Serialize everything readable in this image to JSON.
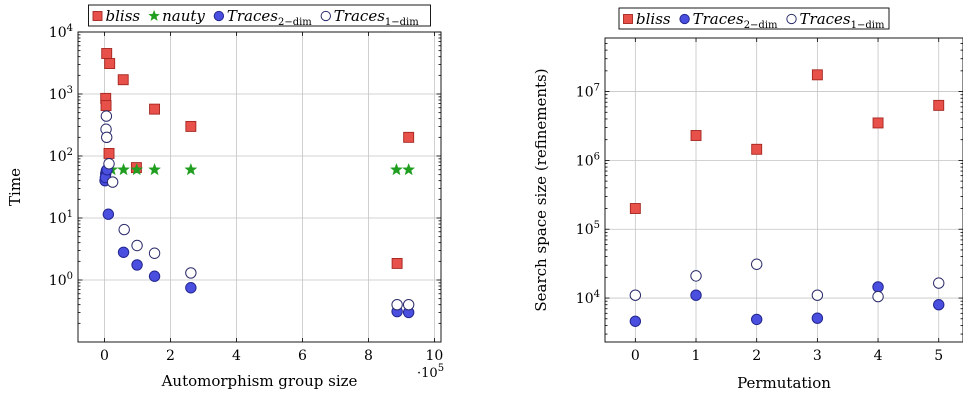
{
  "styles": {
    "bliss": {
      "marker": "square",
      "fill": "#e8504a",
      "stroke": "#a52620"
    },
    "nauty": {
      "marker": "star",
      "fill": "#1f9e1f",
      "stroke": "#1f9e1f"
    },
    "traces2": {
      "marker": "circle-filled",
      "fill": "#4a4fe0",
      "stroke": "#23268f"
    },
    "traces1": {
      "marker": "circle-open",
      "fill": "#ffffff",
      "stroke": "#2b2b6b"
    }
  },
  "chart_data": [
    {
      "type": "scatter",
      "ylabel": "Time",
      "xlabel": "Automorphism group size",
      "x_multiplier": "·10^5",
      "x_multiplier_base": "·10",
      "x_multiplier_exp": "5",
      "xlim": [
        -0.8,
        10.2
      ],
      "xticks": [
        0,
        2,
        4,
        6,
        8,
        10
      ],
      "xtick_labels": [
        "0",
        "2",
        "4",
        "6",
        "8",
        "10"
      ],
      "yscale": "log",
      "ylim": [
        0.1,
        10000
      ],
      "yticks": [
        1,
        10,
        100,
        1000,
        10000
      ],
      "ytick_base": "10",
      "ytick_exps": [
        "0",
        "1",
        "2",
        "3",
        "4"
      ],
      "grid": true,
      "legend_position": "top",
      "series": [
        {
          "name": "bliss",
          "style": "bliss",
          "x": [
            0.07,
            0.16,
            0.04,
            0.05,
            0.57,
            0.14,
            0.97,
            1.52,
            2.62,
            8.87,
            9.22
          ],
          "y": [
            4500,
            3100,
            850,
            650,
            1700,
            110,
            65,
            570,
            300,
            1.85,
            200
          ]
        },
        {
          "name": "nauty",
          "style": "nauty",
          "x": [
            0.22,
            0.58,
            0.98,
            1.52,
            2.62,
            8.85,
            9.22
          ],
          "y": [
            60,
            60,
            60,
            60,
            60,
            60,
            60
          ]
        },
        {
          "name": "Traces",
          "sub": "2−dim",
          "style": "traces2",
          "x": [
            0.02,
            0.04,
            0.06,
            0.03,
            0.08,
            0.12,
            0.58,
            0.99,
            1.52,
            2.62,
            8.87,
            9.22
          ],
          "y": [
            40,
            52,
            58,
            45,
            60,
            11.5,
            2.8,
            1.75,
            1.15,
            0.75,
            0.31,
            0.3
          ]
        },
        {
          "name": "Traces",
          "sub": "1−dim",
          "style": "traces1",
          "x": [
            0.06,
            0.05,
            0.07,
            0.14,
            0.25,
            0.6,
            0.99,
            1.52,
            2.62,
            8.87,
            9.22
          ],
          "y": [
            440,
            270,
            200,
            75,
            38,
            6.5,
            3.6,
            2.7,
            1.3,
            0.4,
            0.4
          ]
        }
      ]
    },
    {
      "type": "scatter",
      "ylabel": "Search space size (refinements)",
      "xlabel": "Permutation",
      "xlim": [
        -0.5,
        5.4
      ],
      "xticks": [
        0,
        1,
        2,
        3,
        4,
        5
      ],
      "xtick_labels": [
        "0",
        "1",
        "2",
        "3",
        "4",
        "5"
      ],
      "yscale": "log",
      "ylim": [
        2300,
        60000000
      ],
      "yticks": [
        10000,
        100000,
        1000000,
        10000000
      ],
      "ytick_base": "10",
      "ytick_exps": [
        "4",
        "5",
        "6",
        "7"
      ],
      "grid": true,
      "legend_position": "top",
      "series": [
        {
          "name": "bliss",
          "style": "bliss",
          "x": [
            0,
            1,
            2,
            3,
            4,
            5
          ],
          "y": [
            200000,
            2300000,
            1450000,
            17500000,
            3500000,
            6300000
          ]
        },
        {
          "name": "Traces",
          "sub": "2−dim",
          "style": "traces2",
          "x": [
            0,
            1,
            2,
            3,
            4,
            5
          ],
          "y": [
            4600,
            11000,
            4900,
            5100,
            14500,
            8000
          ]
        },
        {
          "name": "Traces",
          "sub": "1−dim",
          "style": "traces1",
          "x": [
            0,
            1,
            2,
            3,
            4,
            5
          ],
          "y": [
            11000,
            21000,
            31000,
            11000,
            10500,
            16500
          ]
        }
      ]
    }
  ]
}
